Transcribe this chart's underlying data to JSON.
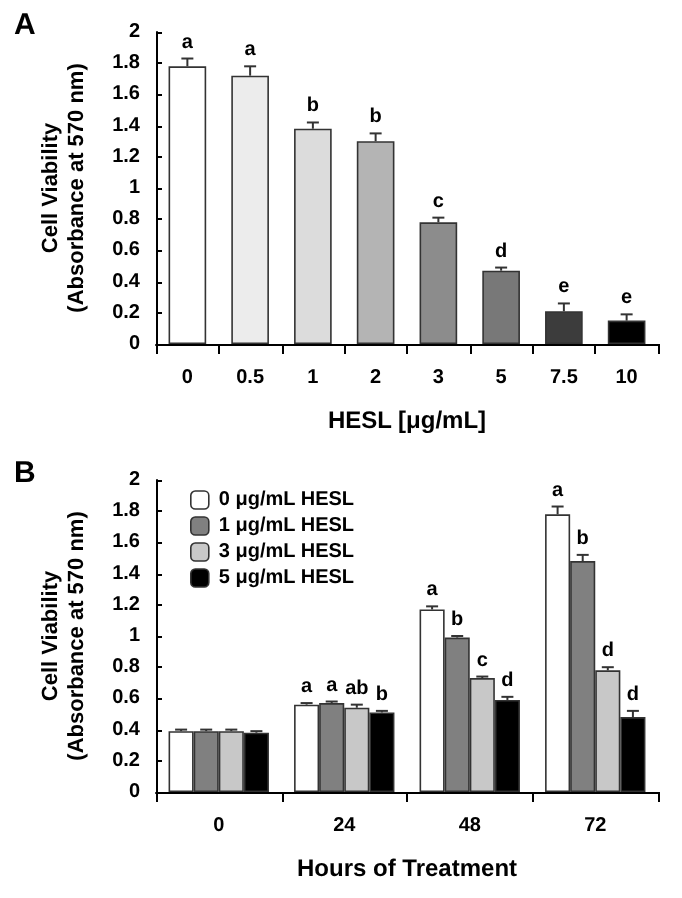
{
  "chart_data": [
    {
      "type": "bar",
      "title": "A",
      "xlabel": "HESL [μg/mL]",
      "ylabel": "Cell Viability\n(Absorbance at 570 nm)",
      "categories": [
        "0",
        "0.5",
        "1",
        "2",
        "3",
        "5",
        "7.5",
        "10"
      ],
      "values": [
        1.78,
        1.72,
        1.38,
        1.3,
        0.78,
        0.47,
        0.21,
        0.15
      ],
      "errors": [
        0.05,
        0.06,
        0.04,
        0.05,
        0.03,
        0.02,
        0.05,
        0.04
      ],
      "value_labels": [
        "a",
        "a",
        "b",
        "b",
        "c",
        "d",
        "e",
        "e"
      ],
      "colors": [
        "#ffffff",
        "#ececec",
        "#dcdcdc",
        "#b4b4b4",
        "#8c8c8c",
        "#787878",
        "#3c3c3c",
        "#000000"
      ],
      "ylim": [
        0,
        2
      ],
      "yticks": [
        0,
        0.2,
        0.4,
        0.6,
        0.8,
        1,
        1.2,
        1.4,
        1.6,
        1.8,
        2
      ],
      "grid": false,
      "legend": false
    },
    {
      "type": "bar",
      "title": "B",
      "xlabel": "Hours of Treatment",
      "ylabel": "Cell Viability\n(Absorbance at 570 nm)",
      "categories": [
        "0",
        "24",
        "48",
        "72"
      ],
      "series": [
        {
          "name": "0 μg/mL HESL",
          "color": "#ffffff",
          "values": [
            0.39,
            0.56,
            1.17,
            1.78
          ],
          "errors": [
            0.01,
            0.01,
            0.02,
            0.05
          ],
          "value_labels": [
            null,
            "a",
            "a",
            "a"
          ]
        },
        {
          "name": "1 μg/mL HESL",
          "color": "#808080",
          "values": [
            0.39,
            0.57,
            0.99,
            1.48
          ],
          "errors": [
            0.01,
            0.01,
            0.01,
            0.04
          ],
          "value_labels": [
            null,
            "a",
            "b",
            "b"
          ]
        },
        {
          "name": "3 μg/mL HESL",
          "color": "#c8c8c8",
          "values": [
            0.39,
            0.54,
            0.73,
            0.78
          ],
          "errors": [
            0.01,
            0.02,
            0.01,
            0.02
          ],
          "value_labels": [
            null,
            "ab",
            "c",
            "d"
          ]
        },
        {
          "name": "5 μg/mL HESL",
          "color": "#000000",
          "values": [
            0.38,
            0.51,
            0.59,
            0.48
          ],
          "errors": [
            0.01,
            0.01,
            0.02,
            0.04
          ],
          "value_labels": [
            null,
            "b",
            "d",
            "d"
          ]
        }
      ],
      "ylim": [
        0,
        2
      ],
      "yticks": [
        0,
        0.2,
        0.4,
        0.6,
        0.8,
        1,
        1.2,
        1.4,
        1.6,
        1.8,
        2
      ],
      "grid": false,
      "legend": "top left"
    }
  ]
}
